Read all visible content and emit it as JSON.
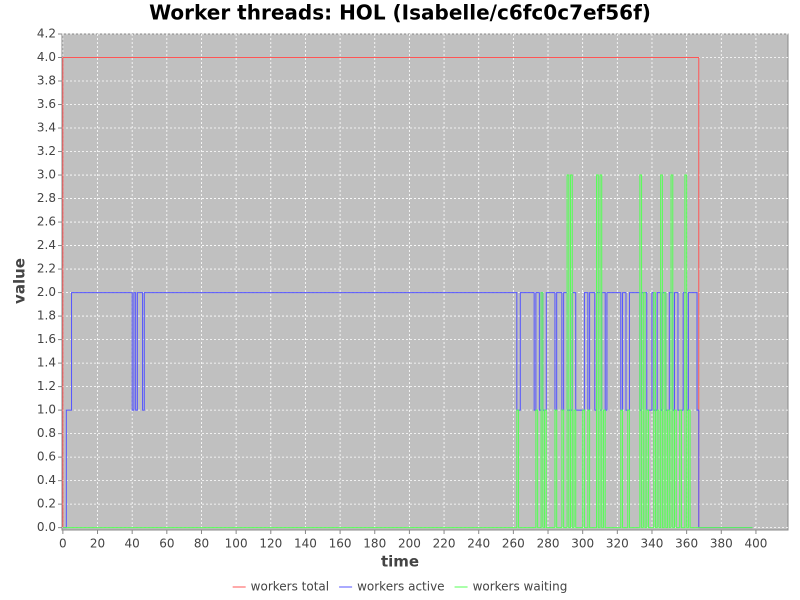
{
  "chart_data": {
    "type": "line",
    "title": "Worker threads: HOL (Isabelle/c6fc0c7ef56f)",
    "x_label": "time",
    "y_label": "value",
    "xlim": [
      -0.5,
      418.5
    ],
    "ylim": [
      -0.02,
      4.2
    ],
    "xticks": [
      0,
      20,
      40,
      60,
      80,
      100,
      120,
      140,
      160,
      180,
      200,
      220,
      240,
      260,
      280,
      300,
      320,
      340,
      360,
      380,
      400
    ],
    "yticks": [
      {
        "value": 0,
        "label": "0.0"
      },
      0.2,
      0.4,
      0.6,
      0.8,
      {
        "value": 1,
        "label": "1.0"
      },
      1.2,
      1.4,
      1.6,
      1.8,
      {
        "value": 2,
        "label": "2.0"
      },
      2.2,
      2.4,
      2.6,
      2.8,
      {
        "value": 3,
        "label": "3.0"
      },
      3.2,
      3.4,
      3.6,
      3.8,
      {
        "value": 4,
        "label": "4.0"
      },
      4.2
    ],
    "grid": true,
    "legend": "bottom",
    "series": [
      {
        "name": "workers total",
        "color": "#ff5555",
        "x": [
          0,
          0,
          367,
          367,
          398
        ],
        "values": [
          0,
          4,
          4,
          0,
          0
        ]
      },
      {
        "name": "workers active",
        "color": "#5555ff",
        "x": [
          0,
          2,
          2,
          5,
          5,
          40,
          40,
          41,
          41,
          42,
          42,
          43,
          43,
          46,
          46,
          47,
          47,
          262,
          262,
          264,
          264,
          272,
          272,
          273,
          273,
          275,
          275,
          276,
          276,
          277,
          277,
          279,
          279,
          284,
          284,
          285,
          285,
          288,
          288,
          289,
          289,
          291,
          291,
          294,
          294,
          296,
          296,
          301,
          301,
          303,
          303,
          304,
          304,
          307,
          307,
          308,
          308,
          310,
          310,
          311,
          311,
          313,
          313,
          314,
          314,
          322,
          322,
          323,
          323,
          325,
          325,
          327,
          327,
          333,
          333,
          334,
          334,
          337,
          337,
          340,
          340,
          341,
          341,
          343,
          343,
          345,
          345,
          346,
          346,
          348,
          348,
          350,
          350,
          352,
          352,
          353,
          353,
          355,
          355,
          358,
          358,
          360,
          360,
          361,
          361,
          366,
          366,
          367,
          367,
          398
        ],
        "values": [
          0,
          0,
          1,
          1,
          2,
          2,
          1,
          1,
          2,
          2,
          1,
          1,
          2,
          2,
          1,
          1,
          2,
          2,
          1,
          1,
          2,
          2,
          1,
          1,
          2,
          2,
          1,
          1,
          2,
          2,
          1,
          1,
          2,
          2,
          1,
          1,
          2,
          2,
          1,
          1,
          2,
          2,
          1,
          1,
          2,
          2,
          1,
          1,
          2,
          2,
          1,
          1,
          2,
          2,
          1,
          1,
          2,
          2,
          1,
          1,
          2,
          2,
          1,
          1,
          2,
          2,
          1,
          1,
          2,
          2,
          1,
          1,
          2,
          2,
          1,
          1,
          2,
          2,
          1,
          1,
          2,
          2,
          1,
          1,
          2,
          2,
          1,
          1,
          2,
          2,
          1,
          1,
          2,
          2,
          1,
          1,
          2,
          2,
          1,
          1,
          2,
          2,
          1,
          1,
          2,
          2,
          1,
          1,
          0,
          0
        ]
      },
      {
        "name": "workers waiting",
        "color": "#55ff55",
        "x": [
          0,
          262,
          262,
          263,
          263,
          273,
          273,
          274,
          274,
          276,
          276,
          277,
          277,
          278,
          278,
          279,
          279,
          284,
          284,
          285,
          285,
          288,
          288,
          289,
          289,
          291,
          291,
          292,
          292,
          293,
          293,
          294,
          294,
          295,
          295,
          296,
          296,
          300,
          300,
          301,
          301,
          303,
          303,
          304,
          304,
          308,
          308,
          309,
          309,
          310,
          310,
          311,
          311,
          312,
          312,
          313,
          313,
          322,
          322,
          323,
          323,
          326,
          326,
          327,
          327,
          333,
          333,
          334,
          334,
          335,
          335,
          336,
          336,
          337,
          337,
          338,
          338,
          341,
          341,
          342,
          342,
          343,
          343,
          344,
          344,
          345,
          345,
          346,
          346,
          347,
          347,
          348,
          348,
          349,
          349,
          350,
          350,
          351,
          351,
          352,
          352,
          353,
          353,
          354,
          354,
          356,
          356,
          357,
          357,
          359,
          359,
          360,
          360,
          361,
          361,
          362,
          362,
          398
        ],
        "values": [
          0,
          0,
          1,
          1,
          0,
          0,
          1,
          1,
          0,
          0,
          2,
          2,
          0,
          0,
          1,
          1,
          0,
          0,
          1,
          1,
          0,
          0,
          1,
          1,
          0,
          0,
          3,
          3,
          0,
          0,
          3,
          3,
          0,
          0,
          1,
          1,
          0,
          0,
          1,
          1,
          0,
          0,
          1,
          1,
          0,
          0,
          3,
          3,
          0,
          0,
          3,
          3,
          0,
          0,
          1,
          1,
          0,
          0,
          1,
          1,
          0,
          0,
          1,
          1,
          0,
          0,
          3,
          3,
          0,
          0,
          2,
          2,
          0,
          0,
          1,
          1,
          0,
          0,
          2,
          2,
          0,
          0,
          1,
          1,
          0,
          0,
          3,
          3,
          0,
          0,
          2,
          2,
          0,
          0,
          1,
          1,
          0,
          0,
          3,
          3,
          0,
          0,
          1,
          1,
          0,
          0,
          1,
          1,
          0,
          0,
          3,
          3,
          0,
          0,
          1,
          1,
          0,
          0
        ]
      }
    ]
  }
}
